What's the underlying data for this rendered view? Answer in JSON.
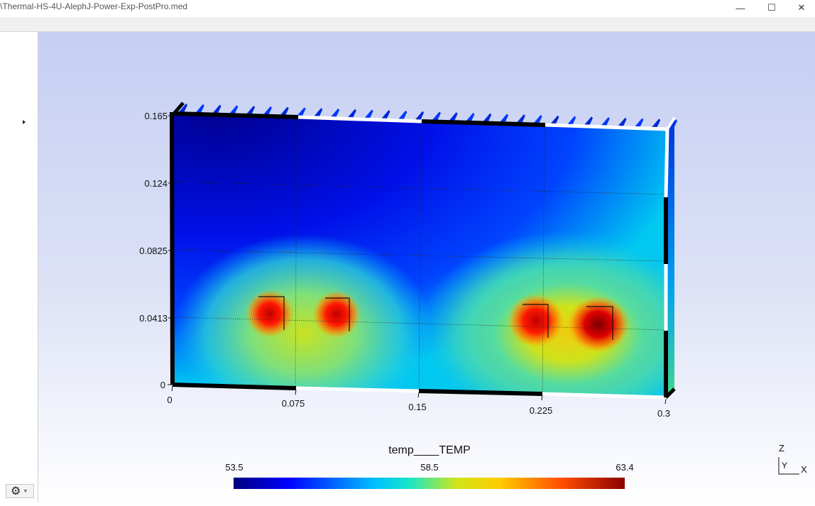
{
  "window": {
    "title": "\\Thermal-HS-4U-AlephJ-Power-Exp-PostPro.med",
    "minimize_glyph": "—",
    "maximize_glyph": "☐",
    "close_glyph": "✕"
  },
  "toolbar": {
    "settings_icon": "gear-icon"
  },
  "plot": {
    "x_ticks": [
      "0",
      "0.075",
      "0.15",
      "0.225",
      "0.3"
    ],
    "y_ticks": [
      "0.165",
      "0.124",
      "0.0825",
      "0.0413",
      "0"
    ],
    "hotspots": [
      {
        "x": 0.06,
        "y": 0.043,
        "temp": 62.0
      },
      {
        "x": 0.1,
        "y": 0.043,
        "temp": 62.0
      },
      {
        "x": 0.225,
        "y": 0.04,
        "temp": 63.0
      },
      {
        "x": 0.262,
        "y": 0.04,
        "temp": 63.4
      }
    ]
  },
  "colorbar": {
    "field": "temp____TEMP",
    "min": "53.5",
    "mid": "58.5",
    "max": "63.4",
    "colormap": [
      "#00007f",
      "#0000ff",
      "#00bfff",
      "#19e6c8",
      "#cfe51a",
      "#ffcc00",
      "#ff4d00",
      "#8b0000"
    ]
  },
  "axes_triad": {
    "z_label": "Z",
    "y_label": "Y",
    "x_label": "X"
  }
}
